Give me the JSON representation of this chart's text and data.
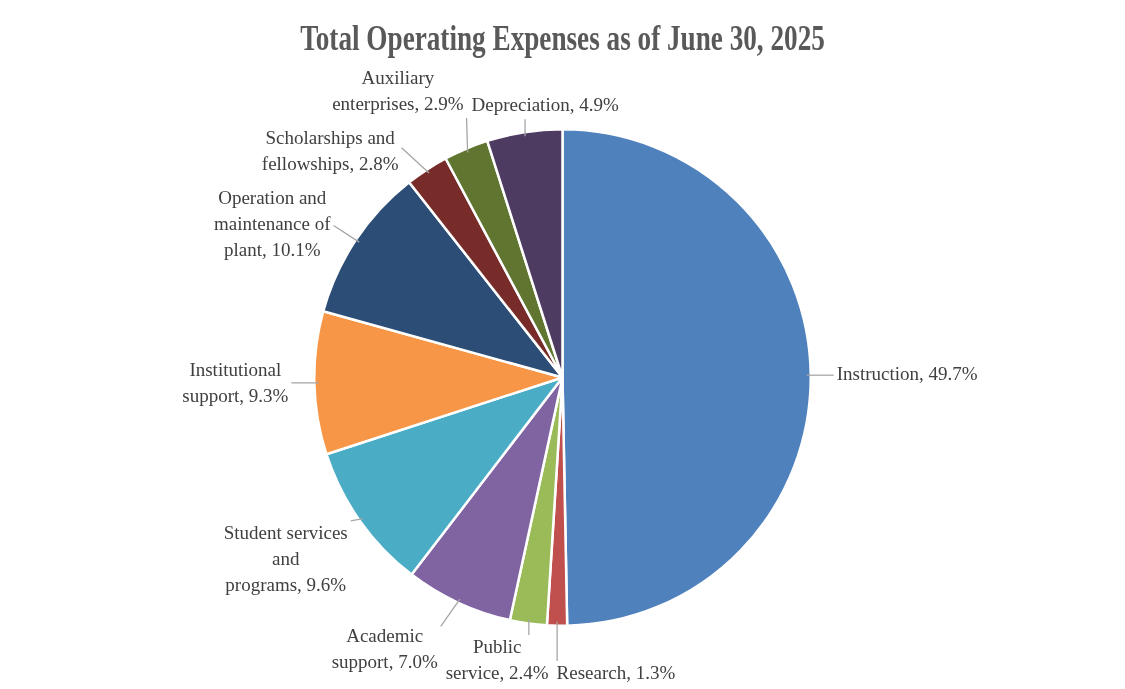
{
  "chart_data": {
    "type": "pie",
    "title": "Total Operating Expenses as of June 30, 2025",
    "categories": [
      "Instruction",
      "Research",
      "Public service",
      "Academic support",
      "Student services and programs",
      "Institutional support",
      "Operation and maintenance of plant",
      "Scholarships and fellowships",
      "Auxiliary enterprises",
      "Depreciation"
    ],
    "values": [
      49.7,
      1.3,
      2.4,
      7.0,
      9.6,
      9.3,
      10.1,
      2.8,
      2.9,
      4.9
    ],
    "value_labels": [
      "49.7%",
      "1.3%",
      "2.4%",
      "7.0%",
      "9.6%",
      "9.3%",
      "10.1%",
      "2.8%",
      "2.9%",
      "4.9%"
    ],
    "colors": [
      "#4f81bd",
      "#c0504d",
      "#9bbb59",
      "#8064a2",
      "#4bacc6",
      "#f79646",
      "#2c4d75",
      "#772c2a",
      "#5f7530",
      "#4d3b62"
    ]
  }
}
